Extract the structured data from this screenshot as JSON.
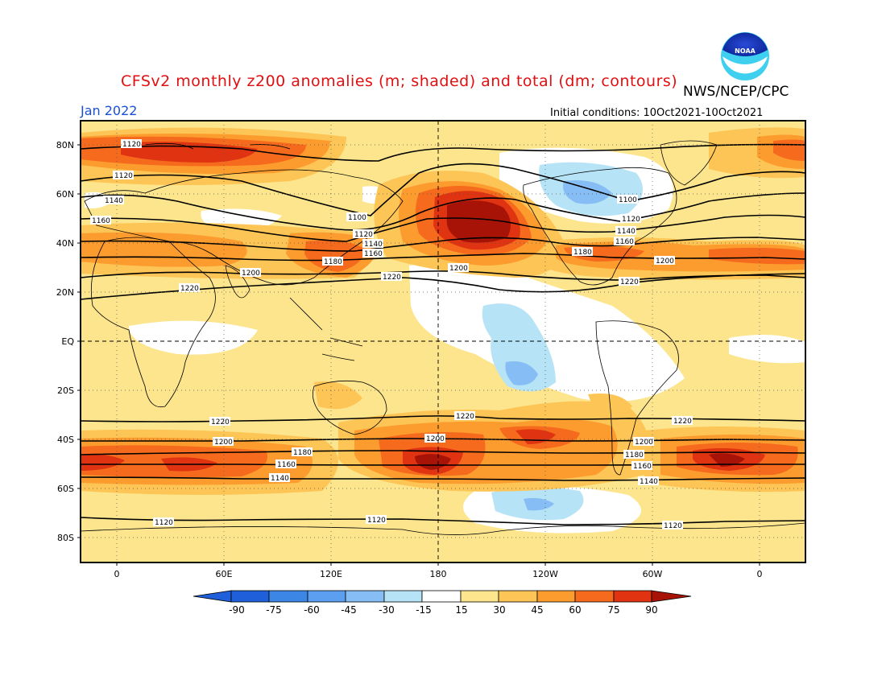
{
  "header": {
    "title": "CFSv2 monthly z200 anomalies (m; shaded) and total (dm; contours)",
    "credit": "NWS/NCEP/CPC",
    "month": "Jan 2022",
    "initial_conditions": "Initial conditions: 10Oct2021-10Oct2021"
  },
  "axes": {
    "lat_labels": [
      "80N",
      "60N",
      "40N",
      "20N",
      "EQ",
      "20S",
      "40S",
      "60S",
      "80S"
    ],
    "lon_labels": [
      "0",
      "60E",
      "120E",
      "180",
      "120W",
      "60W",
      "0"
    ]
  },
  "colorbar": {
    "ticks": [
      "-90",
      "-75",
      "-60",
      "-45",
      "-30",
      "-15",
      "15",
      "30",
      "45",
      "60",
      "75",
      "90"
    ],
    "colors": [
      "#1f5fd9",
      "#3c86e6",
      "#5c9ff0",
      "#85bdf4",
      "#b7e3f7",
      "#ffffff",
      "#fde58e",
      "#fdc555",
      "#fd9c2e",
      "#f56a1c",
      "#df3311",
      "#a81308"
    ]
  },
  "contour_labels": [
    "1100",
    "1120",
    "1140",
    "1160",
    "1180",
    "1200",
    "1220"
  ],
  "colors": {
    "title": "#e01010",
    "month": "#1a4fd6",
    "background_anomaly": "#fde58e"
  }
}
